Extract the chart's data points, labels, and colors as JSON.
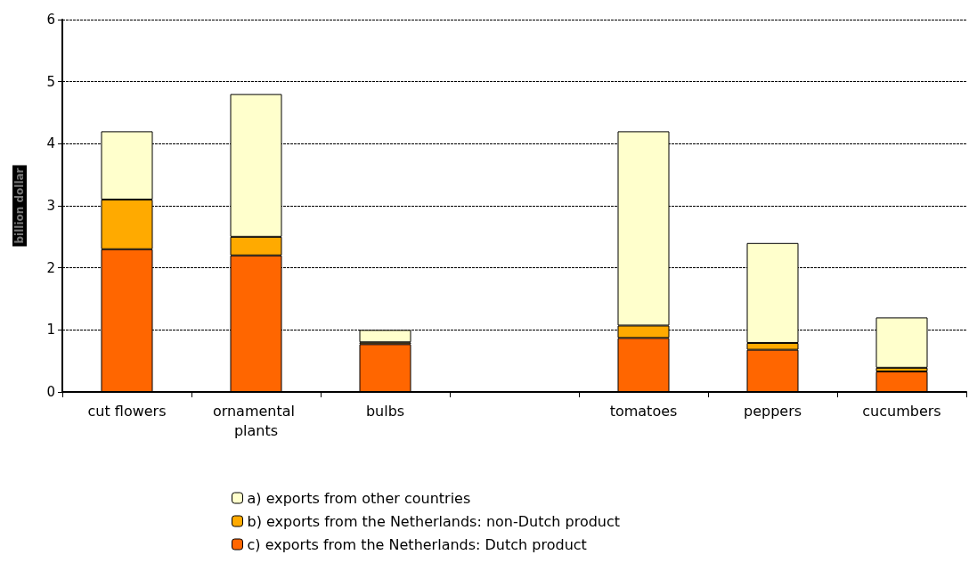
{
  "chart_data": {
    "type": "bar",
    "stacked": true,
    "ylabel": "billion dollar",
    "categories": [
      "cut flowers",
      "ornamental plants",
      "bulbs",
      null,
      "tomatoes",
      "peppers",
      "cucumbers"
    ],
    "series": [
      {
        "name": "c) exports from the Netherlands: Dutch product",
        "color": "#ff6600",
        "values": [
          2.3,
          2.2,
          0.77,
          null,
          0.87,
          0.68,
          0.33
        ]
      },
      {
        "name": "b) exports from the Netherlands: non-Dutch product",
        "color": "#ffaa00",
        "values": [
          0.8,
          0.3,
          0.03,
          null,
          0.2,
          0.11,
          0.06
        ]
      },
      {
        "name": "a) exports from other countries",
        "color": "#ffffcc",
        "values": [
          1.1,
          2.3,
          0.2,
          null,
          3.13,
          1.61,
          0.81
        ]
      }
    ],
    "ylim": [
      0,
      6
    ],
    "yticks": [
      0,
      1,
      2,
      3,
      4,
      5,
      6
    ],
    "grid": "y",
    "legend": "bottom"
  }
}
